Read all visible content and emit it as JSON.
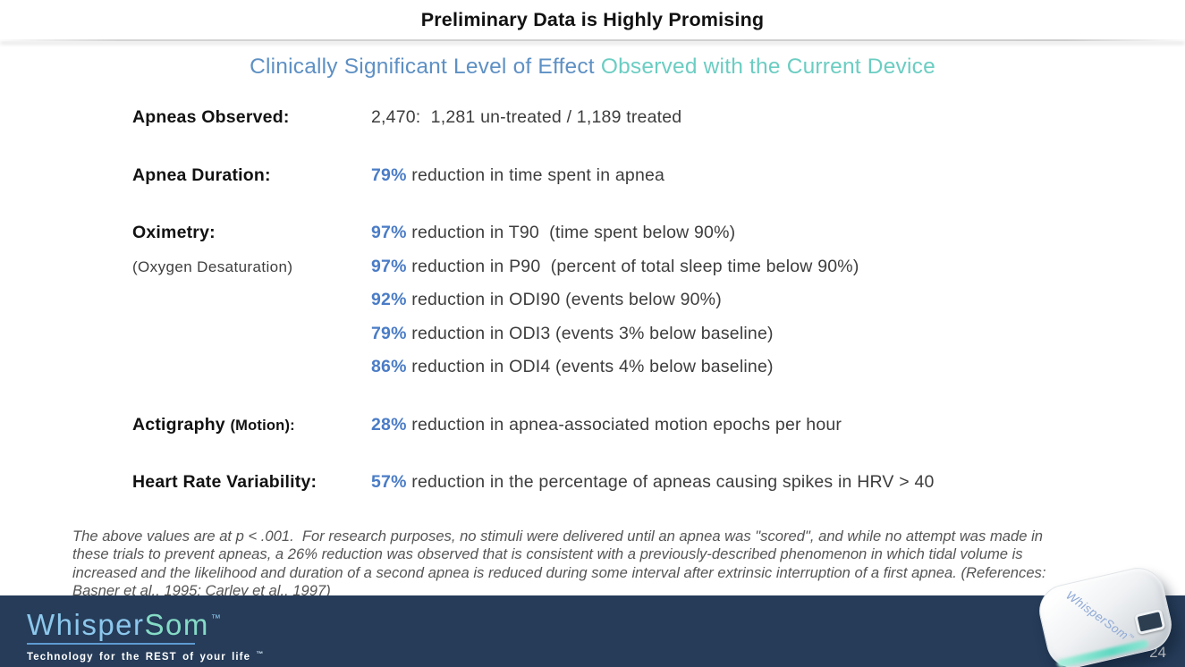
{
  "slide": {
    "title": "Preliminary Data is Highly Promising",
    "subtitle": {
      "primary": "Clinically Significant Level of Effect",
      "secondary": " Observed with the Current Device"
    },
    "page_number": "24"
  },
  "rows": [
    {
      "label": "Apneas Observed:",
      "lines": [
        {
          "text": "2,470:  1,281 un-treated / 1,189 treated"
        }
      ]
    },
    {
      "label": "Apnea Duration:",
      "lines": [
        {
          "value": "79%",
          "text": " reduction in time spent in apnea"
        }
      ]
    },
    {
      "label": "Oximetry:",
      "sublabel": "(Oxygen Desaturation)",
      "lines": [
        {
          "value": "97%",
          "text": " reduction in T90  (time spent below 90%)"
        },
        {
          "value": "97%",
          "text": " reduction in P90  (percent of total sleep time below 90%)"
        },
        {
          "value": "92%",
          "text": " reduction in ODI90 (events below 90%)"
        },
        {
          "value": "79%",
          "text": " reduction in ODI3 (events 3% below baseline)"
        },
        {
          "value": "86%",
          "text": " reduction in ODI4 (events 4% below baseline)"
        }
      ]
    },
    {
      "label": "Actigraphy ",
      "label_note": "(Motion):",
      "lines": [
        {
          "value": "28%",
          "text": " reduction in apnea-associated motion epochs per hour"
        }
      ]
    },
    {
      "label": "Heart Rate Variability:",
      "lines": [
        {
          "value": "57%",
          "text": " reduction in the percentage of apneas causing spikes in HRV > 40"
        }
      ]
    }
  ],
  "footnote": "The above values are at p < .001.  For research purposes, no stimuli were delivered until an apnea was \"scored\", and while no attempt was made in these trials to prevent apneas, a 26% reduction was observed that is consistent with a previously-described phenomenon in which tidal volume is increased and the likelihood and duration of a second apnea is reduced during some interval after extrinsic interruption of a first apnea. (References: Basner et al., 1995; Carley et al., 1997)",
  "footer": {
    "logo": {
      "part1": "Whisper",
      "part2": "Som",
      "tm": "™"
    },
    "tagline": "Technology for the REST of your life ",
    "tagline_tm": "™"
  },
  "device": {
    "label": "WhisperSom",
    "tm": "™"
  },
  "colors": {
    "accent_percent_blue": "#4A7CC6",
    "subtitle_blue": "#5E90C4",
    "subtitle_teal": "#6BCDC2",
    "footer_navy": "#263C59",
    "logo_blue": "#8CC7EC",
    "logo_mint": "#85DBC6",
    "device_glow_teal": "#6FDCC6"
  }
}
